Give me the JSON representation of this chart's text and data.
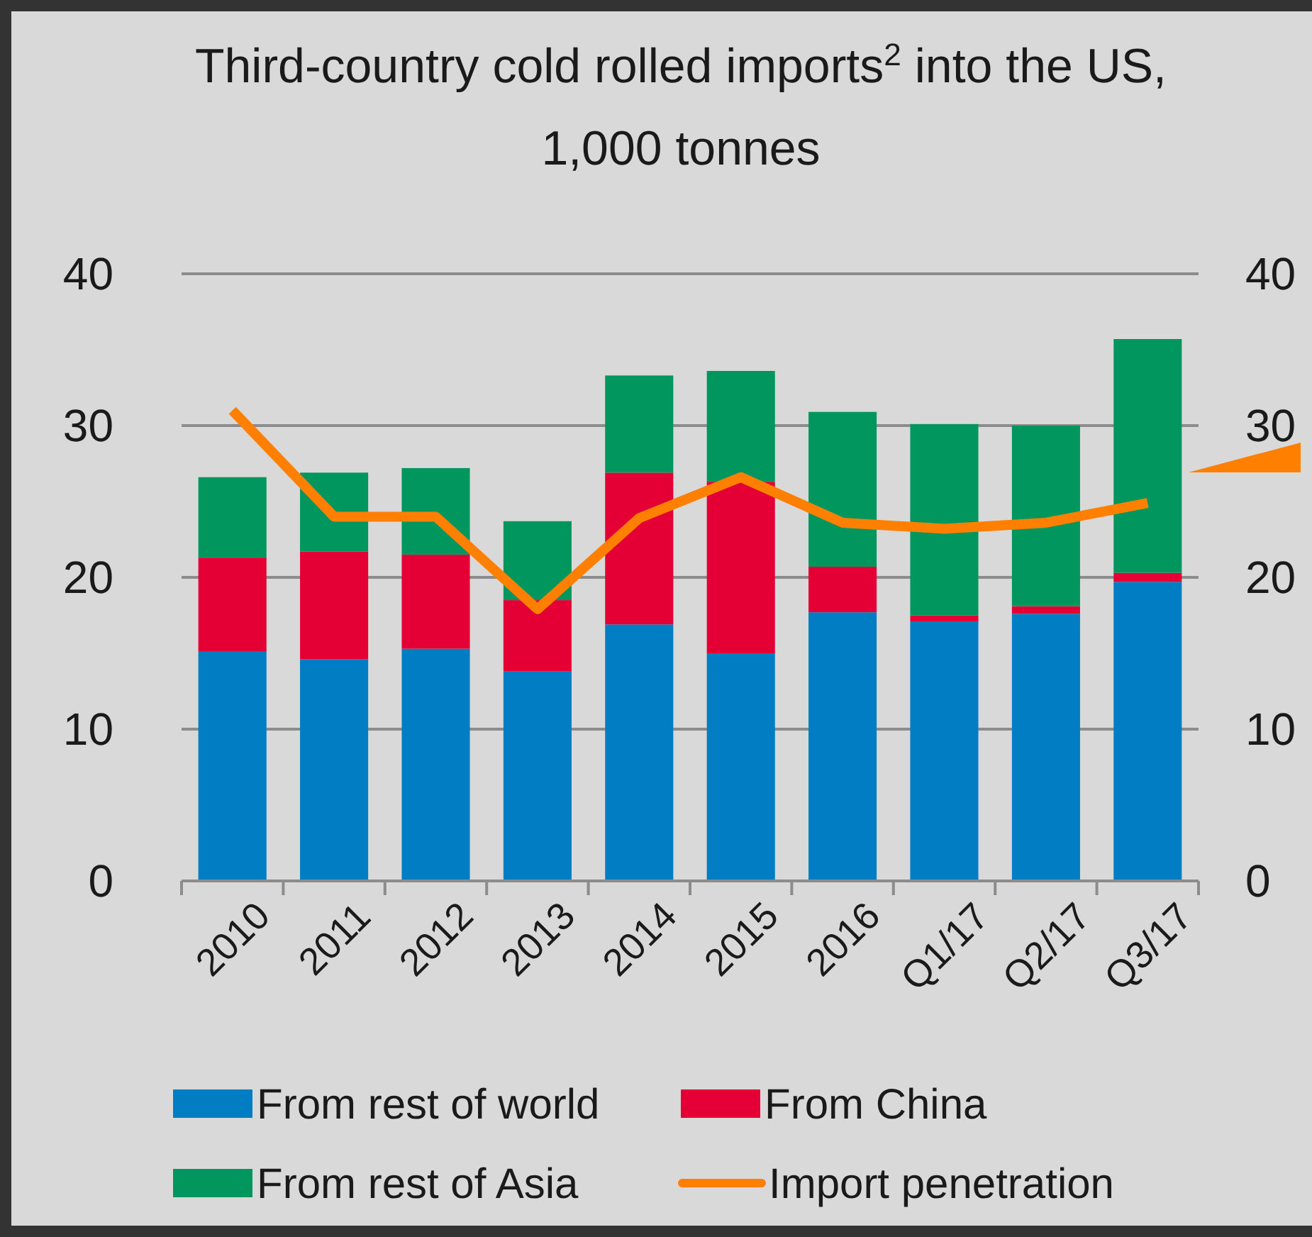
{
  "chart_data": {
    "type": "bar",
    "title": "Third-country cold rolled imports$^{2}$ into the US,\n1,000 tonnes",
    "stacked": true,
    "categories": [
      "2010",
      "2011",
      "2012",
      "2013",
      "2014",
      "2015",
      "2016",
      "Q1/17",
      "Q2/17",
      "Q3/17"
    ],
    "series": [
      {
        "name": "From rest of world",
        "color": "#007dc3",
        "values": [
          15.1,
          14.6,
          15.3,
          13.8,
          16.9,
          15.0,
          17.7,
          17.1,
          17.6,
          19.7
        ]
      },
      {
        "name": "From China",
        "color": "#e40035",
        "values": [
          6.2,
          7.1,
          6.2,
          4.7,
          10.0,
          11.3,
          3.0,
          0.4,
          0.5,
          0.6
        ]
      },
      {
        "name": "From  rest of Asia",
        "color": "#00965e",
        "values": [
          5.3,
          5.2,
          5.7,
          5.2,
          6.4,
          7.3,
          10.2,
          12.6,
          11.9,
          15.4
        ]
      },
      {
        "name": "Import penetration",
        "type": "line",
        "axis": "y2",
        "color": "#ff7f00",
        "values": [
          31.0,
          24.0,
          24.0,
          17.9,
          23.9,
          26.6,
          23.6,
          23.2,
          23.6,
          24.9
        ]
      }
    ],
    "ylim": [
      0,
      40
    ],
    "yticks": [
      0,
      10,
      20,
      30,
      40
    ],
    "y2lim": [
      0,
      40
    ],
    "y2ticks": [
      0,
      10,
      20,
      30,
      40
    ],
    "grid": "y",
    "legend": "bottom"
  }
}
